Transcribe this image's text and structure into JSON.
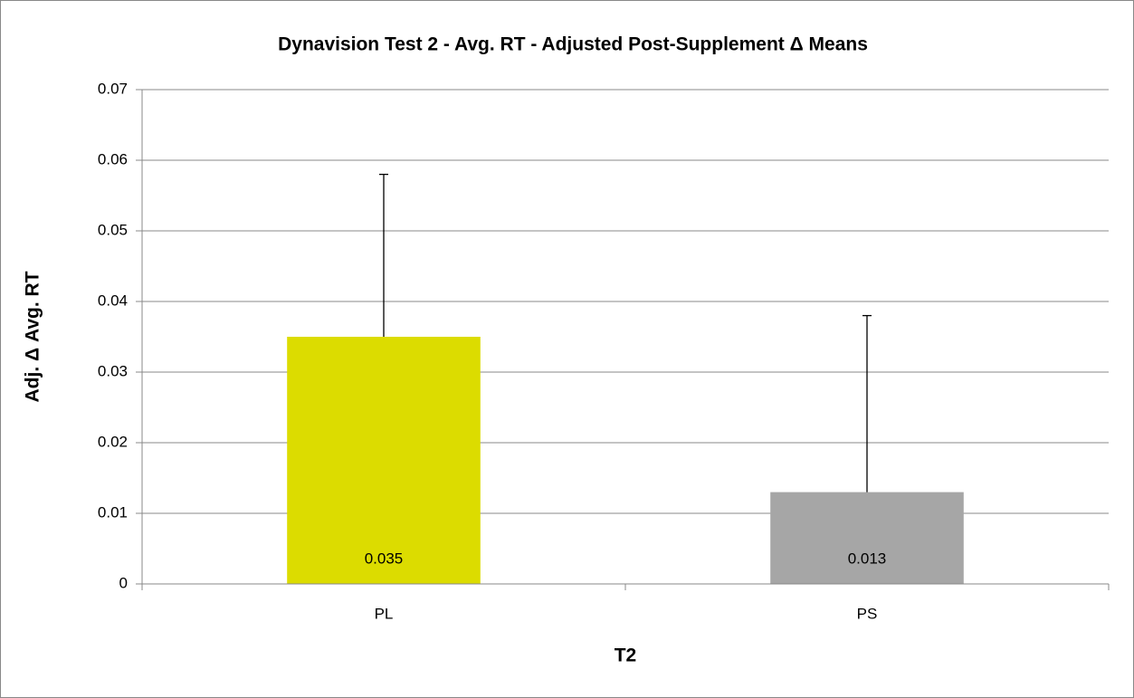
{
  "chart_data": {
    "type": "bar",
    "title": "Dynavision Test 2 - Avg. RT - Adjusted Post-Supplement Δ Means",
    "x_label": "T2",
    "y_label": "Adj. Δ Avg. RT",
    "categories": [
      "PL",
      "PS"
    ],
    "values": [
      0.035,
      0.013
    ],
    "errors": [
      0.023,
      0.025
    ],
    "colors": [
      "#dcdc00",
      "#a6a6a6"
    ],
    "ylim": [
      0,
      0.07
    ],
    "yticks": [
      0,
      0.01,
      0.02,
      0.03,
      0.04,
      0.05,
      0.06,
      0.07
    ],
    "grid": true,
    "data_labels": true
  }
}
